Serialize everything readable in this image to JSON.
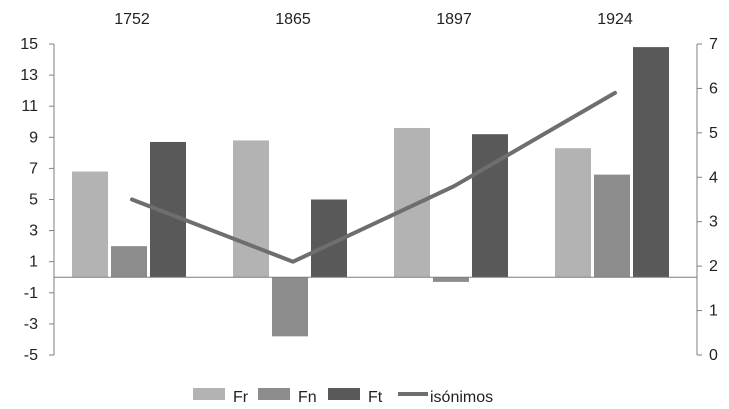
{
  "chart_data": {
    "type": "bar",
    "categories": [
      "1752",
      "1865",
      "1897",
      "1924"
    ],
    "series": [
      {
        "name": "Fr",
        "kind": "bar",
        "axis": "left",
        "color": "#b3b3b3",
        "values": [
          6.8,
          8.8,
          9.6,
          8.3
        ]
      },
      {
        "name": "Fn",
        "kind": "bar",
        "axis": "left",
        "color": "#8c8c8c",
        "values": [
          2.0,
          -3.8,
          -0.3,
          6.6
        ]
      },
      {
        "name": "Ft",
        "kind": "bar",
        "axis": "left",
        "color": "#595959",
        "values": [
          8.7,
          5.0,
          9.2,
          14.8
        ]
      },
      {
        "name": "isónimos",
        "kind": "line",
        "axis": "right",
        "color": "#6e6e6e",
        "values": [
          3.5,
          2.1,
          3.8,
          5.9
        ]
      }
    ],
    "y_left": {
      "min": -5,
      "max": 15,
      "ticks": [
        15,
        13,
        11,
        9,
        7,
        5,
        3,
        1,
        -1,
        -3,
        -5
      ]
    },
    "y_right": {
      "min": 0,
      "max": 7,
      "ticks": [
        7,
        6,
        5,
        4,
        3,
        2,
        1,
        0
      ]
    },
    "grid": false,
    "legend_position": "bottom"
  }
}
